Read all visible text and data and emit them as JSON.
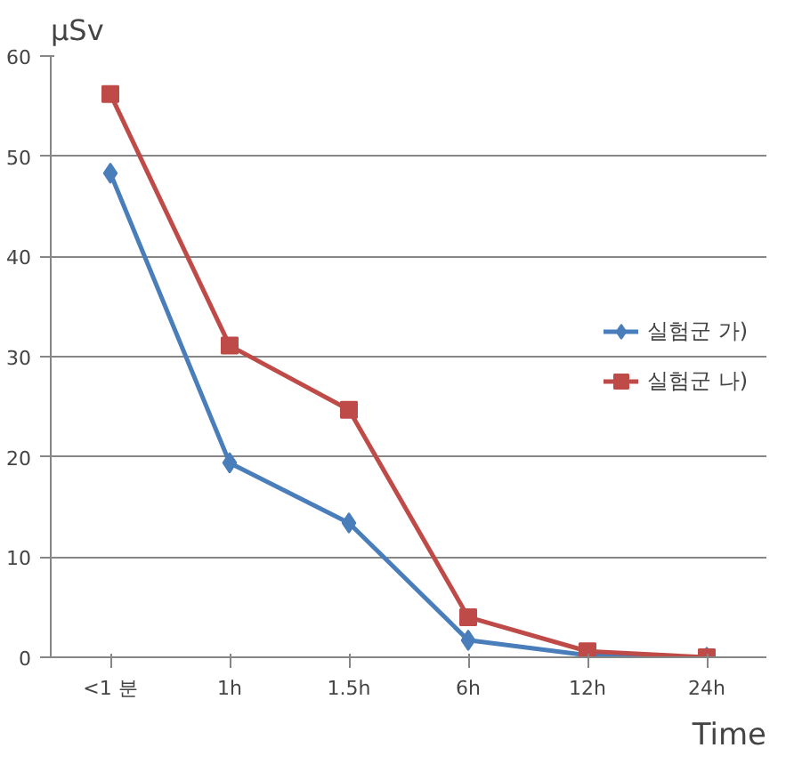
{
  "chart_data": {
    "type": "line",
    "xlabel": "Time",
    "ylabel": "μSv",
    "categories": [
      "<1 분",
      "1h",
      "1.5h",
      "6h",
      "12h",
      "24h"
    ],
    "series": [
      {
        "name": "실험군 가)",
        "color": "#4a7ebb",
        "marker": "diamond",
        "values": [
          48.3,
          19.4,
          13.4,
          1.7,
          0.2,
          0
        ]
      },
      {
        "name": "실험군 나)",
        "color": "#be4b48",
        "marker": "square",
        "values": [
          56.2,
          31.1,
          24.7,
          4.0,
          0.6,
          0
        ]
      }
    ],
    "ylim": [
      0,
      60
    ],
    "yticks": [
      0,
      10,
      20,
      30,
      40,
      50,
      60
    ],
    "grid": "y",
    "legend": "right"
  }
}
